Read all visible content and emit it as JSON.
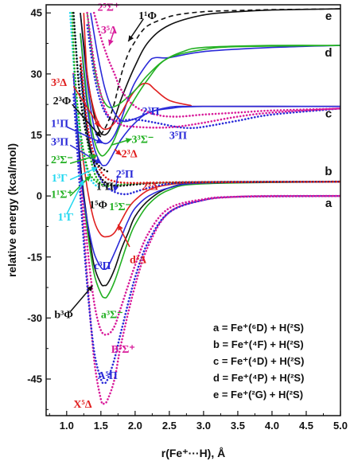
{
  "chart_data": {
    "type": "line",
    "xlabel": "r(Fe⁺···H), Å",
    "ylabel": "relative energy (kcal/mol)",
    "xlim": [
      0.7,
      5.0
    ],
    "ylim": [
      -54,
      47
    ],
    "xticks": [
      "1.0",
      "1.5",
      "2.0",
      "2.5",
      "3.0",
      "3.5",
      "4.0",
      "4.5",
      "5.0"
    ],
    "yticks": [
      "-45",
      "-30",
      "-15",
      "0",
      "15",
      "30",
      "45"
    ],
    "asymptote_labels": [
      "a",
      "b",
      "c",
      "d",
      "e"
    ],
    "asymptotes": [
      0,
      3.5,
      22,
      37,
      46
    ],
    "legend": [
      "a = Fe⁺(⁶D) + H(²S)",
      "b = Fe⁺(⁴F) + H(²S)",
      "c = Fe⁺(⁴D) + H(²S)",
      "d = Fe⁺(⁴P) + H(²S)",
      "e = Fe⁺(²G) + H(²S)"
    ],
    "series": [
      {
        "name": "X⁵Δ",
        "color": "#d81b9a",
        "style": "dotted",
        "x": [
          1.1,
          1.2,
          1.3,
          1.4,
          1.5,
          1.55,
          1.6,
          1.7,
          1.8,
          2.0,
          2.2,
          2.5,
          3.0,
          3.5,
          4.0,
          5.0
        ],
        "y": [
          30,
          5,
          -20,
          -40,
          -50,
          -51,
          -50,
          -45,
          -36,
          -22,
          -12,
          -4,
          -1,
          -0.2,
          0,
          0
        ]
      },
      {
        "name": "A⁵Π",
        "color": "#2a2ad8",
        "style": "dotted",
        "x": [
          1.1,
          1.2,
          1.3,
          1.4,
          1.5,
          1.55,
          1.6,
          1.7,
          1.8,
          2.0,
          2.2,
          2.5,
          3.0,
          3.5,
          5.0
        ],
        "y": [
          25,
          0,
          -22,
          -38,
          -45,
          -46,
          -45,
          -40,
          -33,
          -20,
          -11,
          -4,
          -1,
          -0.2,
          0
        ]
      },
      {
        "name": "B⁵Σ⁺",
        "color": "#d81b9a",
        "style": "dotted",
        "x": [
          1.1,
          1.2,
          1.3,
          1.4,
          1.5,
          1.6,
          1.7,
          1.8,
          2.0,
          2.2,
          2.5,
          3.0,
          3.5,
          5.0
        ],
        "y": [
          30,
          8,
          -12,
          -26,
          -33,
          -34,
          -32,
          -27,
          -17,
          -9,
          -3,
          -0.8,
          -0.2,
          0
        ]
      },
      {
        "name": "a³Σ⁻",
        "color": "#22b022",
        "style": "solid",
        "x": [
          1.1,
          1.2,
          1.3,
          1.4,
          1.5,
          1.55,
          1.6,
          1.7,
          1.8,
          1.9,
          2.0,
          2.2,
          2.5,
          3.0,
          5.0
        ],
        "y": [
          30,
          8,
          -8,
          -19,
          -24,
          -25,
          -24.5,
          -21,
          -16,
          -11,
          -7,
          -2,
          1.5,
          3,
          3.5
        ]
      },
      {
        "name": "b³Φ",
        "color": "#111111",
        "style": "solid",
        "x": [
          1.1,
          1.2,
          1.3,
          1.4,
          1.5,
          1.55,
          1.6,
          1.7,
          1.8,
          1.9,
          2.0,
          2.2,
          2.5,
          3.0,
          5.0
        ],
        "y": [
          30,
          8,
          -6,
          -17,
          -21.5,
          -22,
          -21.5,
          -18,
          -13,
          -9,
          -5,
          -1,
          2,
          3.2,
          3.5
        ]
      },
      {
        "name": "c³Π",
        "color": "#2a2ad8",
        "style": "solid",
        "x": [
          1.1,
          1.2,
          1.3,
          1.4,
          1.5,
          1.55,
          1.6,
          1.7,
          1.8,
          1.9,
          2.0,
          2.2,
          2.5,
          3.0,
          5.0
        ],
        "y": [
          30,
          6,
          -6,
          -14,
          -17.5,
          -18,
          -17.5,
          -14,
          -10,
          -6,
          -3,
          0,
          2,
          3.2,
          3.5
        ]
      },
      {
        "name": "d³Δ",
        "color": "#e01f1f",
        "style": "solid",
        "x": [
          1.2,
          1.3,
          1.4,
          1.5,
          1.6,
          1.7,
          1.8,
          1.9,
          2.0,
          2.2,
          2.5,
          3.0,
          5.0
        ],
        "y": [
          14,
          2,
          -6,
          -9.5,
          -10,
          -9,
          -6,
          -3,
          -1,
          1.5,
          2.8,
          3.3,
          3.5
        ]
      },
      {
        "name": "1⁵Σ⁻",
        "color": "#22b022",
        "style": "dotted",
        "x": [
          1.2,
          1.3,
          1.4,
          1.5,
          1.6,
          1.7,
          1.8,
          2.0,
          2.3,
          3.0,
          5.0
        ],
        "y": [
          30,
          14,
          6,
          3,
          2.5,
          2.6,
          2.8,
          3,
          3.2,
          3.4,
          3.5
        ]
      },
      {
        "name": "2⁵Π",
        "color": "#2a2ad8",
        "style": "dotted",
        "x": [
          1.2,
          1.3,
          1.4,
          1.5,
          1.6,
          1.7,
          1.8,
          1.9,
          2.0,
          2.2,
          2.5,
          3.0,
          5.0
        ],
        "y": [
          30,
          16,
          8,
          4,
          2,
          1,
          0.5,
          0.5,
          1,
          2,
          3,
          3.4,
          3.5
        ]
      },
      {
        "name": "1⁵Φ",
        "color": "#111111",
        "style": "dotted",
        "x": [
          1.2,
          1.3,
          1.4,
          1.5,
          1.6,
          1.7,
          1.8,
          2.0,
          2.3,
          3.0,
          5.0
        ],
        "y": [
          32,
          16,
          8,
          4.5,
          3,
          2.5,
          2.5,
          2.8,
          3.2,
          3.4,
          3.5
        ]
      },
      {
        "name": "2⁵Δ",
        "color": "#e01f1f",
        "style": "dotted",
        "x": [
          1.2,
          1.3,
          1.4,
          1.5,
          1.6,
          1.7,
          1.8,
          2.0,
          2.3,
          3.0,
          5.0
        ],
        "y": [
          34,
          18,
          10,
          6,
          4.2,
          3.6,
          3.3,
          3.2,
          3.3,
          3.4,
          3.5
        ]
      },
      {
        "name": "1¹Γ",
        "color": "#22d8f0",
        "style": "dotted",
        "x": [
          1.05,
          1.1,
          1.15,
          1.2,
          1.3,
          1.4,
          1.5
        ],
        "y": [
          45,
          33,
          22,
          14,
          6,
          3,
          2
        ]
      },
      {
        "name": "1¹Σ⁺",
        "color": "#22b022",
        "style": "dotted",
        "x": [
          1.08,
          1.12,
          1.2,
          1.3,
          1.4,
          1.5
        ],
        "y": [
          45,
          30,
          16,
          7,
          4,
          3
        ]
      },
      {
        "name": "1³Γ",
        "color": "#22d8f0",
        "style": "dotted",
        "x": [
          1.1,
          1.15,
          1.2,
          1.3,
          1.4,
          1.5
        ],
        "y": [
          45,
          34,
          24,
          14,
          9,
          7
        ]
      },
      {
        "name": "1³Π",
        "color": "#111111",
        "style": "dotted",
        "x": [
          1.1,
          1.15,
          1.2,
          1.3,
          1.4,
          1.5,
          1.6
        ],
        "y": [
          45,
          33,
          24,
          14,
          9,
          7,
          6
        ]
      },
      {
        "name": "3³Π",
        "color": "#2a2ad8",
        "style": "solid",
        "x": [
          1.2,
          1.3,
          1.4,
          1.5,
          1.55,
          1.6,
          1.7,
          1.8,
          2.0,
          2.2,
          2.5,
          3.0,
          5.0
        ],
        "y": [
          40,
          22,
          12,
          8,
          7.5,
          8,
          11,
          14,
          18,
          20.5,
          21.5,
          22,
          22
        ]
      },
      {
        "name": "2³Σ⁻",
        "color": "#22b022",
        "style": "solid",
        "x": [
          1.2,
          1.3,
          1.4,
          1.5,
          1.6,
          1.7,
          1.8,
          2.0,
          2.2,
          2.4,
          2.7,
          3.0,
          4.0,
          5.0
        ],
        "y": [
          40,
          24,
          14,
          10,
          11,
          14,
          18,
          24,
          29,
          33,
          35.5,
          36.5,
          37,
          37
        ]
      },
      {
        "name": "1¹Π",
        "color": "#2a2ad8",
        "style": "solid",
        "x": [
          1.2,
          1.3,
          1.4,
          1.5,
          1.6,
          1.7,
          1.8,
          1.9,
          2.0,
          2.2,
          2.3,
          2.5,
          3.0,
          4.0,
          5.0
        ],
        "y": [
          45,
          28,
          17,
          13.5,
          13,
          15,
          19,
          24,
          28,
          33,
          34,
          34,
          35.5,
          36.5,
          37
        ]
      },
      {
        "name": "2³Φ",
        "color": "#111111",
        "style": "solid",
        "x": [
          1.2,
          1.3,
          1.4,
          1.5,
          1.6,
          1.7,
          1.8,
          2.0,
          2.2,
          2.5,
          3.0,
          3.5,
          4.0,
          5.0
        ],
        "y": [
          45,
          30,
          20,
          15.5,
          15.5,
          19,
          24,
          32,
          38,
          42,
          44.5,
          45.3,
          45.7,
          46
        ]
      },
      {
        "name": "3³Δ",
        "color": "#e01f1f",
        "style": "solid",
        "x": [
          1.25,
          1.3,
          1.4,
          1.5,
          1.6,
          1.7,
          1.8,
          1.9,
          2.0,
          2.1,
          2.2,
          2.3,
          2.5,
          2.8,
          3.0,
          5.0
        ],
        "y": [
          45,
          30,
          21,
          17,
          16.5,
          18,
          20.5,
          23.5,
          26,
          27.5,
          27.5,
          26,
          23.5,
          22.3,
          22,
          22
        ]
      },
      {
        "name": "3³Σ⁻",
        "color": "#22b022",
        "style": "solid",
        "x": [
          1.3,
          1.4,
          1.5,
          1.6,
          1.7,
          1.8,
          2.0,
          2.2,
          2.5,
          3.0,
          3.5,
          5.0
        ],
        "y": [
          45,
          32,
          25,
          22,
          22,
          23,
          26,
          30,
          34,
          36,
          36.7,
          37
        ]
      },
      {
        "name": "2³Π",
        "color": "#2a2ad8",
        "style": "solid",
        "x": [
          1.35,
          1.45,
          1.55,
          1.65,
          1.8,
          2.0,
          2.2,
          2.4,
          2.6,
          3.0,
          5.0
        ],
        "y": [
          45,
          35,
          27,
          22,
          18.5,
          19,
          20.5,
          21.5,
          22,
          22,
          22
        ]
      },
      {
        "name": "3⁵Π",
        "color": "#2a2ad8",
        "style": "dotted",
        "x": [
          1.3,
          1.4,
          1.5,
          1.6,
          1.7,
          1.8,
          2.0,
          2.3,
          2.6,
          2.8,
          3.0,
          3.5,
          4.0,
          5.0
        ],
        "y": [
          42,
          30,
          23,
          19.5,
          18.5,
          18.5,
          18.8,
          18,
          17,
          16.7,
          17,
          18.5,
          20,
          21.5
        ]
      },
      {
        "name": "3⁵Δ",
        "color": "#d81b9a",
        "style": "dotted",
        "x": [
          1.3,
          1.4,
          1.5,
          1.6,
          1.8,
          2.0,
          2.3,
          2.6,
          3.0,
          3.5,
          4.0,
          5.0
        ],
        "y": [
          45,
          33,
          25,
          20,
          17.5,
          17,
          16.8,
          17,
          18,
          19.5,
          20.5,
          21.5
        ]
      },
      {
        "name": "2⁵Σ⁺",
        "color": "#d81b9a",
        "style": "dotted",
        "x": [
          1.4,
          1.5,
          1.6,
          1.7,
          1.8,
          2.0,
          2.3,
          2.6,
          3.0,
          3.5,
          4.0,
          5.0
        ],
        "y": [
          45,
          39,
          34,
          30,
          26,
          22,
          20,
          19.5,
          20,
          20.5,
          21,
          21.5
        ]
      },
      {
        "name": "1¹Φ",
        "color": "#111111",
        "style": "dashed",
        "x": [
          1.5,
          1.6,
          1.7,
          1.8,
          1.9,
          2.0,
          2.1,
          2.2,
          2.4,
          2.6,
          3.0,
          3.5,
          4.0,
          5.0
        ],
        "y": [
          15,
          18,
          23,
          30,
          35,
          38,
          40.5,
          42,
          43.5,
          44.5,
          45.3,
          45.6,
          45.8,
          46
        ]
      }
    ],
    "annotations": [
      {
        "text": "2⁵Σ⁺",
        "color": "#d81b9a",
        "x": 1.45,
        "y": 45.5
      },
      {
        "text": "3⁵Δ",
        "color": "#d81b9a",
        "x": 1.5,
        "y": 40
      },
      {
        "text": "1¹Φ",
        "color": "#111111",
        "x": 2.05,
        "y": 43.5
      },
      {
        "text": "3³Δ",
        "color": "#e01f1f",
        "x": 0.77,
        "y": 27
      },
      {
        "text": "2³Φ",
        "color": "#111111",
        "x": 0.8,
        "y": 22.5
      },
      {
        "text": "1¹Π",
        "color": "#2a2ad8",
        "x": 0.77,
        "y": 17
      },
      {
        "text": "3³Π",
        "color": "#2a2ad8",
        "x": 0.77,
        "y": 12.5
      },
      {
        "text": "2³Σ⁻",
        "color": "#22b022",
        "x": 0.77,
        "y": 8
      },
      {
        "text": "1³Γ",
        "color": "#22d8f0",
        "x": 0.78,
        "y": 3.5
      },
      {
        "text": "1¹Σ⁺",
        "color": "#22b022",
        "x": 0.77,
        "y": -0.5
      },
      {
        "text": "1¹Γ",
        "color": "#22d8f0",
        "x": 0.87,
        "y": -6
      },
      {
        "text": "2³Π",
        "color": "#2a2ad8",
        "x": 2.1,
        "y": 20
      },
      {
        "text": "3⁵Π",
        "color": "#2a2ad8",
        "x": 2.5,
        "y": 14
      },
      {
        "text": "3³Σ⁻",
        "color": "#22b022",
        "x": 1.95,
        "y": 13
      },
      {
        "text": "2³Δ",
        "color": "#e01f1f",
        "x": 1.8,
        "y": 9.5
      },
      {
        "text": "2⁵Π",
        "color": "#2a2ad8",
        "x": 1.72,
        "y": 4.5
      },
      {
        "text": "2⁵Δ",
        "color": "#e01f1f",
        "x": 2.1,
        "y": 1.5
      },
      {
        "text": "1³Π",
        "color": "#111111",
        "x": 1.43,
        "y": 1.5
      },
      {
        "text": "1⁵Φ",
        "color": "#111111",
        "x": 1.33,
        "y": -3
      },
      {
        "text": "1⁵Σ⁻",
        "color": "#22b022",
        "x": 1.62,
        "y": -3.5
      },
      {
        "text": "d³Δ",
        "color": "#e01f1f",
        "x": 1.92,
        "y": -16.5
      },
      {
        "text": "c³Π",
        "color": "#2a2ad8",
        "x": 1.4,
        "y": -18
      },
      {
        "text": "b³Φ",
        "color": "#111111",
        "x": 0.82,
        "y": -30
      },
      {
        "text": "a³Σ⁻",
        "color": "#22b022",
        "x": 1.5,
        "y": -30
      },
      {
        "text": "B⁵Σ⁺",
        "color": "#d81b9a",
        "x": 1.65,
        "y": -38.5
      },
      {
        "text": "A⁵Π",
        "color": "#2a2ad8",
        "x": 1.45,
        "y": -45
      },
      {
        "text": "X⁵Δ",
        "color": "#e01f1f",
        "x": 1.1,
        "y": -52
      }
    ],
    "arrows": [
      {
        "color": "#d81b9a",
        "x1": 1.7,
        "y1": 41,
        "x2": 1.62,
        "y2": 37
      },
      {
        "color": "#111111",
        "x1": 2.12,
        "y1": 43.5,
        "x2": 1.9,
        "y2": 38
      },
      {
        "color": "#e01f1f",
        "x1": 1.1,
        "y1": 27,
        "x2": 1.48,
        "y2": 17
      },
      {
        "color": "#111111",
        "x1": 1.08,
        "y1": 22.5,
        "x2": 1.5,
        "y2": 14.5
      },
      {
        "color": "#2a2ad8",
        "x1": 1.0,
        "y1": 17,
        "x2": 1.52,
        "y2": 13
      },
      {
        "color": "#2a2ad8",
        "x1": 1.05,
        "y1": 12.5,
        "x2": 1.5,
        "y2": 8
      },
      {
        "color": "#22b022",
        "x1": 1.05,
        "y1": 8,
        "x2": 1.45,
        "y2": 10
      },
      {
        "color": "#22d8f0",
        "x1": 1.05,
        "y1": 4,
        "x2": 1.45,
        "y2": 7
      },
      {
        "color": "#22b022",
        "x1": 1.05,
        "y1": 0,
        "x2": 1.35,
        "y2": 5
      },
      {
        "color": "#22d8f0",
        "x1": 1.0,
        "y1": -4.5,
        "x2": 1.25,
        "y2": 4
      },
      {
        "color": "#22b022",
        "x1": 1.65,
        "y1": 12.5,
        "x2": 1.95,
        "y2": 14
      },
      {
        "color": "#e01f1f",
        "x1": 1.7,
        "y1": 11.5,
        "x2": 1.8,
        "y2": 10
      },
      {
        "color": "#2a2ad8",
        "x1": 1.75,
        "y1": 5,
        "x2": 1.7,
        "y2": 1
      },
      {
        "color": "#e01f1f",
        "x1": 1.92,
        "y1": -12.5,
        "x2": 1.75,
        "y2": -7
      },
      {
        "color": "#111111",
        "x1": 1.05,
        "y1": -28.5,
        "x2": 1.38,
        "y2": -22
      }
    ]
  }
}
